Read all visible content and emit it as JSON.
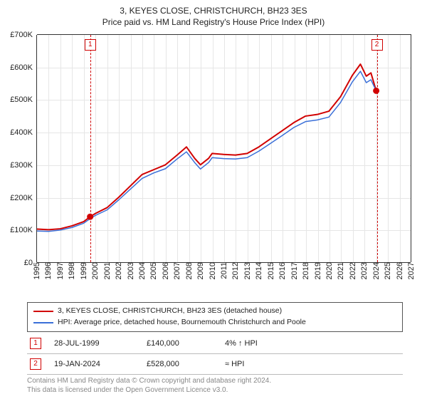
{
  "title": {
    "line1": "3, KEYES CLOSE, CHRISTCHURCH, BH23 3ES",
    "line2": "Price paid vs. HM Land Registry's House Price Index (HPI)"
  },
  "chart": {
    "type": "line",
    "background_color": "#ffffff",
    "grid_color": "#e6e6e6",
    "axis_color": "#333333",
    "xlim": [
      1995,
      2027
    ],
    "ylim": [
      0,
      700000
    ],
    "yticks": [
      0,
      100000,
      200000,
      300000,
      400000,
      500000,
      600000,
      700000
    ],
    "ytick_labels": [
      "£0",
      "£100K",
      "£200K",
      "£300K",
      "£400K",
      "£500K",
      "£600K",
      "£700K"
    ],
    "xticks": [
      1995,
      1996,
      1997,
      1998,
      1999,
      2000,
      2001,
      2002,
      2003,
      2004,
      2005,
      2006,
      2007,
      2008,
      2009,
      2010,
      2011,
      2012,
      2013,
      2014,
      2015,
      2016,
      2017,
      2018,
      2019,
      2020,
      2021,
      2022,
      2023,
      2024,
      2025,
      2026,
      2027
    ],
    "series": [
      {
        "id": "price_paid",
        "color": "#d10000",
        "width": 2,
        "label": "3, KEYES CLOSE, CHRISTCHURCH, BH23 3ES (detached house)",
        "points": [
          [
            1995.0,
            102000
          ],
          [
            1996.0,
            100000
          ],
          [
            1997.0,
            103000
          ],
          [
            1998.0,
            112000
          ],
          [
            1999.0,
            125000
          ],
          [
            1999.55,
            140000
          ],
          [
            2000.0,
            150000
          ],
          [
            2001.0,
            168000
          ],
          [
            2002.0,
            200000
          ],
          [
            2003.0,
            235000
          ],
          [
            2004.0,
            270000
          ],
          [
            2005.0,
            285000
          ],
          [
            2006.0,
            300000
          ],
          [
            2007.0,
            330000
          ],
          [
            2007.8,
            355000
          ],
          [
            2008.5,
            320000
          ],
          [
            2009.0,
            300000
          ],
          [
            2009.7,
            320000
          ],
          [
            2010.0,
            335000
          ],
          [
            2011.0,
            332000
          ],
          [
            2012.0,
            330000
          ],
          [
            2013.0,
            335000
          ],
          [
            2014.0,
            355000
          ],
          [
            2015.0,
            380000
          ],
          [
            2016.0,
            405000
          ],
          [
            2017.0,
            430000
          ],
          [
            2018.0,
            450000
          ],
          [
            2019.0,
            455000
          ],
          [
            2020.0,
            465000
          ],
          [
            2021.0,
            510000
          ],
          [
            2022.0,
            575000
          ],
          [
            2022.7,
            610000
          ],
          [
            2023.2,
            573000
          ],
          [
            2023.6,
            583000
          ],
          [
            2024.05,
            528000
          ]
        ]
      },
      {
        "id": "hpi",
        "color": "#3a6fd8",
        "width": 1.5,
        "label": "HPI: Average price, detached house, Bournemouth Christchurch and Poole",
        "points": [
          [
            1995.0,
            96000
          ],
          [
            1996.0,
            95000
          ],
          [
            1997.0,
            99000
          ],
          [
            1998.0,
            107000
          ],
          [
            1999.0,
            120000
          ],
          [
            1999.55,
            134000
          ],
          [
            2000.0,
            144000
          ],
          [
            2001.0,
            161000
          ],
          [
            2002.0,
            192000
          ],
          [
            2003.0,
            225000
          ],
          [
            2004.0,
            258000
          ],
          [
            2005.0,
            275000
          ],
          [
            2006.0,
            288000
          ],
          [
            2007.0,
            318000
          ],
          [
            2007.8,
            340000
          ],
          [
            2008.5,
            307000
          ],
          [
            2009.0,
            287000
          ],
          [
            2009.7,
            307000
          ],
          [
            2010.0,
            322000
          ],
          [
            2011.0,
            319000
          ],
          [
            2012.0,
            318000
          ],
          [
            2013.0,
            322000
          ],
          [
            2014.0,
            342000
          ],
          [
            2015.0,
            366000
          ],
          [
            2016.0,
            390000
          ],
          [
            2017.0,
            415000
          ],
          [
            2018.0,
            433000
          ],
          [
            2019.0,
            438000
          ],
          [
            2020.0,
            447000
          ],
          [
            2021.0,
            492000
          ],
          [
            2022.0,
            555000
          ],
          [
            2022.7,
            588000
          ],
          [
            2023.2,
            553000
          ],
          [
            2023.6,
            562000
          ],
          [
            2024.05,
            528000
          ]
        ]
      }
    ],
    "event_markers": [
      {
        "n": "1",
        "x": 1999.55,
        "point_y": 140000
      },
      {
        "n": "2",
        "x": 2024.05,
        "point_y": 528000
      }
    ],
    "marker_color": "#d10000",
    "marker_radius": 4.5
  },
  "legend": {
    "items": [
      {
        "color": "#d10000",
        "label": "3, KEYES CLOSE, CHRISTCHURCH, BH23 3ES (detached house)"
      },
      {
        "color": "#3a6fd8",
        "label": "HPI: Average price, detached house, Bournemouth Christchurch and Poole"
      }
    ]
  },
  "events": [
    {
      "n": "1",
      "date": "28-JUL-1999",
      "price": "£140,000",
      "delta": "4% ↑ HPI"
    },
    {
      "n": "2",
      "date": "19-JAN-2024",
      "price": "£528,000",
      "delta": "≈ HPI"
    }
  ],
  "footer": {
    "line1": "Contains HM Land Registry data © Crown copyright and database right 2024.",
    "line2": "This data is licensed under the Open Government Licence v3.0."
  },
  "label_fontsize": 11,
  "title_fontsize": 12
}
